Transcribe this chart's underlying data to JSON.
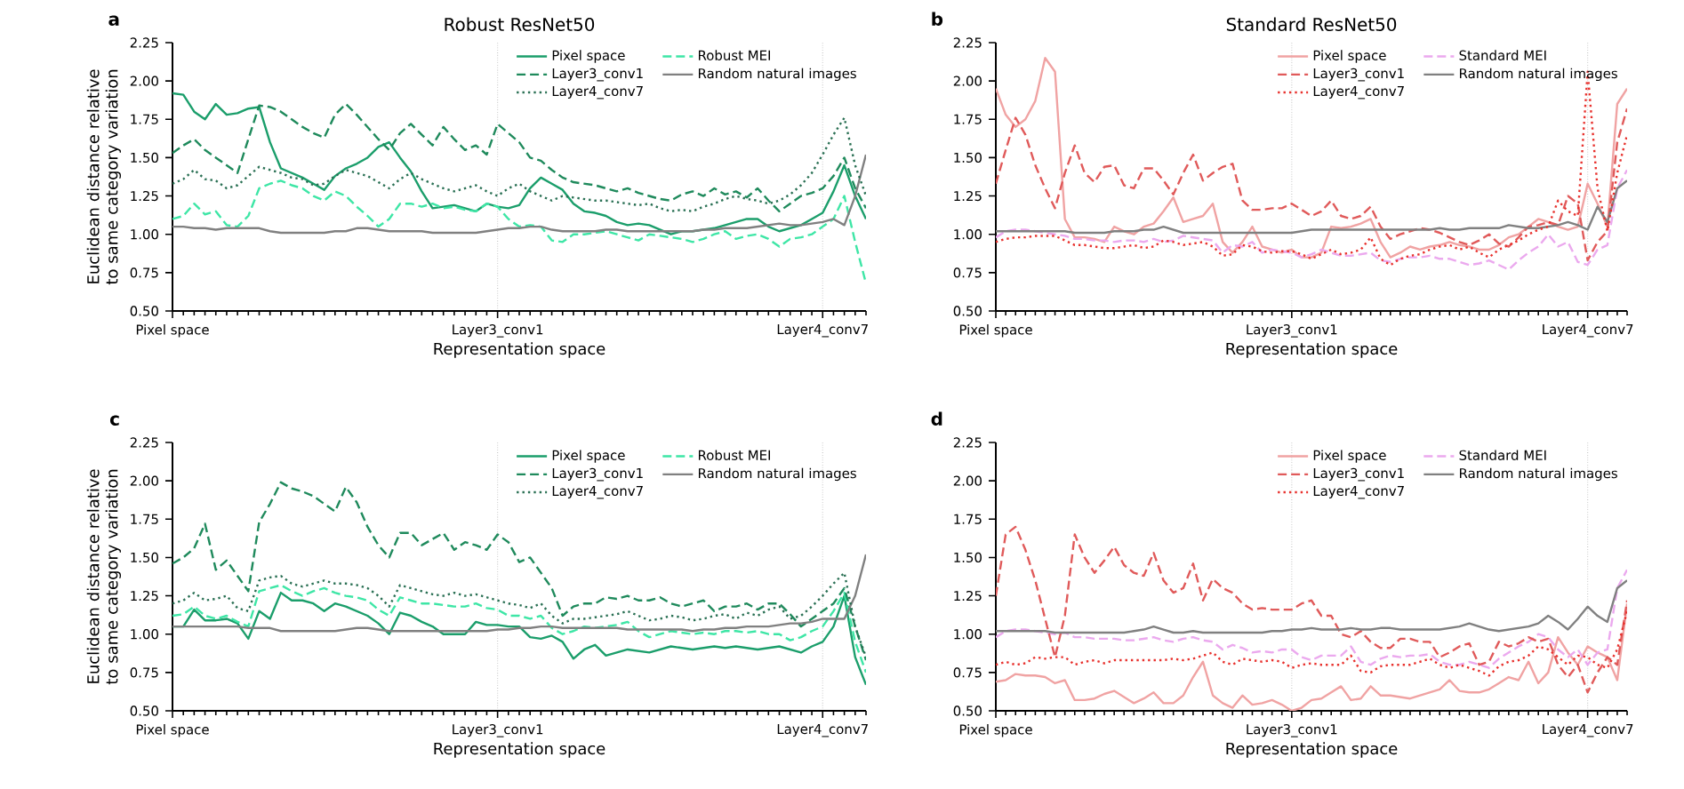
{
  "chart_data": [
    {
      "type": "line",
      "title": "Robust ResNet50",
      "xlabel": "Representation space",
      "ylabel": "Euclidean distance relative to same category variation",
      "annotations": [
        "a"
      ],
      "categories": [
        "Pixel space",
        null,
        null,
        null,
        null,
        null,
        null,
        null,
        null,
        null,
        null,
        null,
        null,
        null,
        null,
        null,
        null,
        null,
        null,
        null,
        null,
        null,
        null,
        null,
        null,
        null,
        null,
        null,
        null,
        null,
        "Layer3_conv1",
        null,
        null,
        null,
        null,
        null,
        null,
        null,
        null,
        null,
        null,
        null,
        null,
        null,
        null,
        null,
        null,
        null,
        null,
        null,
        null,
        null,
        null,
        null,
        null,
        null,
        null,
        null,
        null,
        null,
        "Layer4_conv7",
        null,
        null,
        null,
        null
      ],
      "ylim": [
        0.5,
        2.25
      ],
      "yticks": [
        {
          "value": 0.5,
          "label": "0.50"
        },
        {
          "value": 0.75,
          "label": "0.75"
        },
        {
          "value": 1.0,
          "label": "1.00"
        },
        {
          "value": 1.25,
          "label": "1.25"
        },
        {
          "value": 1.5,
          "label": "1.50"
        },
        {
          "value": 1.75,
          "label": "1.75"
        },
        {
          "value": 2.0,
          "label": "2.00"
        },
        {
          "value": 2.25,
          "label": "2.25"
        }
      ],
      "grid": "x",
      "legend": "top right",
      "series": [
        {
          "name": "Pixel space",
          "color": "#1b9e6b",
          "line_style": "solid",
          "values": [
            1.92,
            1.91,
            1.8,
            1.75,
            1.85,
            1.78,
            1.79,
            1.82,
            1.83,
            1.6,
            1.43,
            1.4,
            1.37,
            1.33,
            1.29,
            1.38,
            1.43,
            1.46,
            1.5,
            1.57,
            1.6,
            1.5,
            1.41,
            1.28,
            1.17,
            1.18,
            1.19,
            1.17,
            1.15,
            1.2,
            1.18,
            1.17,
            1.19,
            1.3,
            1.37,
            1.33,
            1.29,
            1.2,
            1.15,
            1.14,
            1.12,
            1.08,
            1.06,
            1.07,
            1.06,
            1.03,
            1.0,
            1.02,
            1.02,
            1.03,
            1.04,
            1.06,
            1.08,
            1.1,
            1.1,
            1.05,
            1.02,
            1.04,
            1.06,
            1.1,
            1.14,
            1.28,
            1.45,
            1.25,
            1.1
          ]
        },
        {
          "name": "Layer3_conv1",
          "color": "#1f8a5c",
          "line_style": "dashed",
          "values": [
            1.53,
            1.58,
            1.62,
            1.55,
            1.5,
            1.45,
            1.4,
            1.62,
            1.84,
            1.83,
            1.8,
            1.75,
            1.7,
            1.66,
            1.63,
            1.78,
            1.85,
            1.78,
            1.7,
            1.62,
            1.55,
            1.66,
            1.72,
            1.65,
            1.58,
            1.7,
            1.62,
            1.55,
            1.58,
            1.52,
            1.72,
            1.66,
            1.6,
            1.5,
            1.48,
            1.42,
            1.37,
            1.34,
            1.33,
            1.32,
            1.3,
            1.28,
            1.3,
            1.27,
            1.25,
            1.23,
            1.22,
            1.26,
            1.28,
            1.25,
            1.3,
            1.26,
            1.28,
            1.24,
            1.3,
            1.22,
            1.15,
            1.2,
            1.25,
            1.27,
            1.3,
            1.38,
            1.5,
            1.3,
            1.17
          ]
        },
        {
          "name": "Layer4_conv7",
          "color": "#2a7054",
          "line_style": "dotted",
          "values": [
            1.33,
            1.36,
            1.42,
            1.36,
            1.35,
            1.3,
            1.32,
            1.38,
            1.44,
            1.42,
            1.4,
            1.37,
            1.36,
            1.32,
            1.33,
            1.38,
            1.42,
            1.4,
            1.38,
            1.34,
            1.3,
            1.36,
            1.4,
            1.36,
            1.33,
            1.3,
            1.28,
            1.3,
            1.32,
            1.28,
            1.25,
            1.3,
            1.33,
            1.28,
            1.25,
            1.22,
            1.25,
            1.24,
            1.23,
            1.22,
            1.22,
            1.21,
            1.2,
            1.19,
            1.2,
            1.17,
            1.15,
            1.16,
            1.15,
            1.18,
            1.2,
            1.23,
            1.25,
            1.23,
            1.22,
            1.2,
            1.22,
            1.26,
            1.32,
            1.4,
            1.52,
            1.65,
            1.76,
            1.45,
            1.25
          ]
        },
        {
          "name": "Robust MEI",
          "color": "#3ee6a6",
          "line_style": "dashed",
          "values": [
            1.1,
            1.12,
            1.2,
            1.13,
            1.15,
            1.06,
            1.05,
            1.12,
            1.3,
            1.33,
            1.35,
            1.32,
            1.3,
            1.25,
            1.22,
            1.28,
            1.25,
            1.18,
            1.12,
            1.05,
            1.1,
            1.2,
            1.2,
            1.18,
            1.2,
            1.17,
            1.18,
            1.16,
            1.15,
            1.2,
            1.18,
            1.1,
            1.05,
            1.06,
            1.05,
            0.96,
            0.95,
            1.0,
            1.0,
            1.01,
            1.02,
            1.0,
            0.98,
            0.96,
            1.0,
            0.99,
            0.98,
            0.97,
            0.95,
            0.97,
            1.0,
            1.02,
            0.97,
            0.99,
            1.0,
            0.97,
            0.92,
            0.97,
            0.98,
            1.0,
            1.05,
            1.1,
            1.25,
            0.95,
            0.68
          ]
        },
        {
          "name": "Random natural images",
          "color": "#808080",
          "line_style": "solid",
          "values": [
            1.05,
            1.05,
            1.04,
            1.04,
            1.03,
            1.04,
            1.04,
            1.04,
            1.04,
            1.02,
            1.01,
            1.01,
            1.01,
            1.01,
            1.01,
            1.02,
            1.02,
            1.04,
            1.04,
            1.03,
            1.02,
            1.02,
            1.02,
            1.02,
            1.01,
            1.01,
            1.01,
            1.01,
            1.01,
            1.02,
            1.03,
            1.04,
            1.04,
            1.05,
            1.05,
            1.03,
            1.02,
            1.02,
            1.02,
            1.02,
            1.03,
            1.03,
            1.02,
            1.02,
            1.02,
            1.02,
            1.02,
            1.02,
            1.02,
            1.03,
            1.03,
            1.04,
            1.04,
            1.04,
            1.05,
            1.06,
            1.07,
            1.06,
            1.06,
            1.07,
            1.08,
            1.1,
            1.06,
            1.25,
            1.52
          ]
        }
      ]
    },
    {
      "type": "line",
      "title": "Standard ResNet50",
      "xlabel": "Representation space",
      "annotations": [
        "b"
      ],
      "categories": [
        "Pixel space",
        null,
        null,
        null,
        null,
        null,
        null,
        null,
        null,
        null,
        null,
        null,
        null,
        null,
        null,
        null,
        null,
        null,
        null,
        null,
        null,
        null,
        null,
        null,
        null,
        null,
        null,
        null,
        null,
        null,
        "Layer3_conv1",
        null,
        null,
        null,
        null,
        null,
        null,
        null,
        null,
        null,
        null,
        null,
        null,
        null,
        null,
        null,
        null,
        null,
        null,
        null,
        null,
        null,
        null,
        null,
        null,
        null,
        null,
        null,
        null,
        null,
        "Layer4_conv7",
        null,
        null,
        null,
        null
      ],
      "ylim": [
        0.5,
        2.25
      ],
      "yticks": [
        {
          "value": 0.5,
          "label": "0.50"
        },
        {
          "value": 0.75,
          "label": "0.75"
        },
        {
          "value": 1.0,
          "label": "1.00"
        },
        {
          "value": 1.25,
          "label": "1.25"
        },
        {
          "value": 1.5,
          "label": "1.50"
        },
        {
          "value": 1.75,
          "label": "1.75"
        },
        {
          "value": 2.0,
          "label": "2.00"
        },
        {
          "value": 2.25,
          "label": "2.25"
        }
      ],
      "grid": "x",
      "legend": "top right",
      "series": [
        {
          "name": "Pixel space",
          "color": "#f0a3a3",
          "line_style": "solid",
          "values": [
            1.95,
            1.78,
            1.7,
            1.75,
            1.87,
            2.15,
            2.06,
            1.1,
            0.98,
            0.98,
            0.97,
            0.95,
            1.05,
            1.02,
            1.0,
            1.05,
            1.07,
            1.15,
            1.24,
            1.08,
            1.1,
            1.12,
            1.2,
            0.95,
            0.88,
            0.95,
            1.05,
            0.92,
            0.9,
            0.88,
            0.9,
            0.85,
            0.85,
            0.88,
            1.05,
            1.04,
            1.05,
            1.07,
            1.1,
            0.95,
            0.85,
            0.88,
            0.92,
            0.9,
            0.92,
            0.93,
            0.95,
            0.93,
            0.92,
            0.9,
            0.9,
            0.93,
            0.98,
            1.0,
            1.05,
            1.1,
            1.08,
            1.05,
            1.03,
            1.05,
            1.33,
            1.2,
            1.05,
            1.85,
            1.95
          ]
        },
        {
          "name": "Layer3_conv1",
          "color": "#e05a5a",
          "line_style": "dashed",
          "values": [
            1.33,
            1.55,
            1.76,
            1.65,
            1.45,
            1.3,
            1.17,
            1.4,
            1.58,
            1.4,
            1.34,
            1.44,
            1.45,
            1.32,
            1.3,
            1.43,
            1.43,
            1.35,
            1.26,
            1.4,
            1.52,
            1.35,
            1.4,
            1.44,
            1.46,
            1.22,
            1.16,
            1.16,
            1.17,
            1.17,
            1.2,
            1.16,
            1.12,
            1.15,
            1.22,
            1.12,
            1.1,
            1.12,
            1.18,
            1.05,
            0.97,
            1.0,
            1.02,
            1.04,
            1.03,
            1.01,
            0.98,
            0.95,
            0.93,
            0.96,
            1.0,
            0.94,
            0.92,
            0.98,
            1.05,
            1.06,
            1.08,
            1.06,
            1.25,
            1.2,
            0.83,
            0.95,
            1.02,
            1.6,
            1.82
          ]
        },
        {
          "name": "Layer4_conv7",
          "color": "#e8322e",
          "line_style": "dotted",
          "values": [
            0.95,
            0.97,
            0.98,
            0.98,
            0.99,
            0.99,
            0.99,
            0.96,
            0.93,
            0.93,
            0.92,
            0.91,
            0.91,
            0.92,
            0.93,
            0.91,
            0.92,
            0.96,
            0.95,
            0.93,
            0.94,
            0.95,
            0.92,
            0.86,
            0.87,
            0.93,
            0.92,
            0.89,
            0.88,
            0.89,
            0.89,
            0.87,
            0.84,
            0.87,
            0.9,
            0.87,
            0.88,
            0.9,
            0.98,
            0.84,
            0.8,
            0.84,
            0.86,
            0.87,
            0.9,
            0.92,
            0.93,
            0.9,
            0.92,
            0.88,
            0.85,
            0.9,
            0.93,
            0.96,
            1.0,
            1.03,
            1.05,
            1.22,
            1.15,
            1.12,
            2.06,
            1.3,
            1.02,
            1.4,
            1.65
          ]
        },
        {
          "name": "Standard MEI",
          "color": "#eba9ee",
          "line_style": "dashed",
          "values": [
            0.98,
            1.02,
            1.03,
            1.03,
            1.02,
            1.01,
            1.0,
            0.99,
            0.97,
            0.97,
            0.96,
            0.96,
            0.95,
            0.96,
            0.96,
            0.95,
            0.97,
            0.95,
            0.96,
            0.99,
            0.98,
            0.97,
            0.96,
            0.88,
            0.93,
            0.92,
            0.95,
            0.88,
            0.9,
            0.89,
            0.88,
            0.85,
            0.87,
            0.9,
            0.88,
            0.86,
            0.86,
            0.87,
            0.88,
            0.83,
            0.82,
            0.84,
            0.85,
            0.85,
            0.86,
            0.84,
            0.84,
            0.82,
            0.8,
            0.81,
            0.83,
            0.8,
            0.77,
            0.83,
            0.88,
            0.92,
            1.0,
            0.92,
            0.95,
            0.82,
            0.8,
            0.9,
            0.93,
            1.3,
            1.42
          ]
        },
        {
          "name": "Random natural images",
          "color": "#808080",
          "line_style": "solid",
          "values": [
            1.02,
            1.02,
            1.02,
            1.02,
            1.02,
            1.02,
            1.02,
            1.02,
            1.01,
            1.01,
            1.01,
            1.01,
            1.02,
            1.02,
            1.02,
            1.03,
            1.03,
            1.05,
            1.03,
            1.01,
            1.01,
            1.01,
            1.01,
            1.01,
            1.01,
            1.01,
            1.01,
            1.01,
            1.01,
            1.01,
            1.01,
            1.02,
            1.03,
            1.03,
            1.03,
            1.03,
            1.03,
            1.03,
            1.03,
            1.03,
            1.03,
            1.03,
            1.03,
            1.03,
            1.03,
            1.04,
            1.03,
            1.03,
            1.04,
            1.04,
            1.04,
            1.04,
            1.06,
            1.05,
            1.04,
            1.04,
            1.05,
            1.06,
            1.08,
            1.06,
            1.03,
            1.18,
            1.08,
            1.3,
            1.35
          ]
        }
      ]
    },
    {
      "type": "line",
      "xlabel": "Representation space",
      "ylabel": "Euclidean distance relative to same category variation",
      "annotations": [
        "c"
      ],
      "categories": [
        "Pixel space",
        null,
        null,
        null,
        null,
        null,
        null,
        null,
        null,
        null,
        null,
        null,
        null,
        null,
        null,
        null,
        null,
        null,
        null,
        null,
        null,
        null,
        null,
        null,
        null,
        null,
        null,
        null,
        null,
        null,
        "Layer3_conv1",
        null,
        null,
        null,
        null,
        null,
        null,
        null,
        null,
        null,
        null,
        null,
        null,
        null,
        null,
        null,
        null,
        null,
        null,
        null,
        null,
        null,
        null,
        null,
        null,
        null,
        null,
        null,
        null,
        null,
        "Layer4_conv7",
        null,
        null,
        null,
        null
      ],
      "ylim": [
        0.5,
        2.25
      ],
      "yticks": [
        {
          "value": 0.5,
          "label": "0.50"
        },
        {
          "value": 0.75,
          "label": "0.75"
        },
        {
          "value": 1.0,
          "label": "1.00"
        },
        {
          "value": 1.25,
          "label": "1.25"
        },
        {
          "value": 1.5,
          "label": "1.50"
        },
        {
          "value": 1.75,
          "label": "1.75"
        },
        {
          "value": 2.0,
          "label": "2.00"
        },
        {
          "value": 2.25,
          "label": "2.25"
        }
      ],
      "grid": "x",
      "legend": "top right",
      "series": [
        {
          "name": "Pixel space",
          "color": "#1b9e6b",
          "line_style": "solid",
          "values": [
            1.05,
            1.05,
            1.16,
            1.09,
            1.09,
            1.1,
            1.07,
            0.97,
            1.15,
            1.1,
            1.27,
            1.22,
            1.22,
            1.2,
            1.15,
            1.2,
            1.18,
            1.15,
            1.12,
            1.07,
            1.0,
            1.14,
            1.12,
            1.08,
            1.05,
            1.0,
            1.0,
            1.0,
            1.08,
            1.06,
            1.06,
            1.05,
            1.05,
            0.98,
            0.97,
            0.99,
            0.95,
            0.84,
            0.9,
            0.93,
            0.86,
            0.88,
            0.9,
            0.89,
            0.88,
            0.9,
            0.92,
            0.91,
            0.9,
            0.91,
            0.92,
            0.91,
            0.92,
            0.91,
            0.9,
            0.91,
            0.92,
            0.9,
            0.88,
            0.92,
            0.95,
            1.05,
            1.25,
            0.85,
            0.67
          ]
        },
        {
          "name": "Layer3_conv1",
          "color": "#1f8a5c",
          "line_style": "dashed",
          "values": [
            1.46,
            1.5,
            1.56,
            1.72,
            1.42,
            1.48,
            1.38,
            1.28,
            1.73,
            1.85,
            1.99,
            1.95,
            1.93,
            1.9,
            1.85,
            1.8,
            1.96,
            1.86,
            1.7,
            1.58,
            1.5,
            1.66,
            1.66,
            1.58,
            1.62,
            1.66,
            1.55,
            1.6,
            1.58,
            1.55,
            1.65,
            1.6,
            1.47,
            1.5,
            1.4,
            1.3,
            1.12,
            1.18,
            1.2,
            1.2,
            1.24,
            1.23,
            1.25,
            1.22,
            1.22,
            1.24,
            1.2,
            1.18,
            1.2,
            1.22,
            1.15,
            1.18,
            1.18,
            1.2,
            1.16,
            1.2,
            1.2,
            1.13,
            1.05,
            1.1,
            1.15,
            1.2,
            1.3,
            1.05,
            0.83
          ]
        },
        {
          "name": "Layer4_conv7",
          "color": "#2a7054",
          "line_style": "dotted",
          "values": [
            1.2,
            1.22,
            1.27,
            1.22,
            1.23,
            1.25,
            1.17,
            1.15,
            1.35,
            1.37,
            1.38,
            1.33,
            1.31,
            1.33,
            1.35,
            1.33,
            1.33,
            1.32,
            1.3,
            1.25,
            1.18,
            1.32,
            1.3,
            1.28,
            1.26,
            1.25,
            1.27,
            1.25,
            1.26,
            1.24,
            1.22,
            1.2,
            1.19,
            1.17,
            1.2,
            1.12,
            1.07,
            1.1,
            1.1,
            1.11,
            1.12,
            1.13,
            1.15,
            1.12,
            1.09,
            1.1,
            1.12,
            1.11,
            1.09,
            1.1,
            1.12,
            1.13,
            1.1,
            1.14,
            1.12,
            1.16,
            1.18,
            1.1,
            1.12,
            1.18,
            1.25,
            1.33,
            1.4,
            1.05,
            0.85
          ]
        },
        {
          "name": "Robust MEI",
          "color": "#3ee6a6",
          "line_style": "dashed",
          "values": [
            1.12,
            1.13,
            1.18,
            1.12,
            1.1,
            1.12,
            1.08,
            1.05,
            1.28,
            1.3,
            1.32,
            1.28,
            1.25,
            1.28,
            1.3,
            1.27,
            1.25,
            1.24,
            1.22,
            1.16,
            1.12,
            1.24,
            1.22,
            1.2,
            1.2,
            1.19,
            1.18,
            1.18,
            1.2,
            1.17,
            1.16,
            1.12,
            1.12,
            1.1,
            1.12,
            1.04,
            1.0,
            1.02,
            1.05,
            1.04,
            1.05,
            1.06,
            1.08,
            1.02,
            0.98,
            1.0,
            1.02,
            1.01,
            1.0,
            1.01,
            1.0,
            1.02,
            1.02,
            1.01,
            1.02,
            1.0,
            1.0,
            0.96,
            0.98,
            1.02,
            1.05,
            1.15,
            1.27,
            0.95,
            0.75
          ]
        },
        {
          "name": "Random natural images",
          "color": "#808080",
          "line_style": "solid",
          "values": [
            1.05,
            1.05,
            1.05,
            1.05,
            1.05,
            1.05,
            1.05,
            1.04,
            1.04,
            1.04,
            1.02,
            1.02,
            1.02,
            1.02,
            1.02,
            1.02,
            1.03,
            1.04,
            1.04,
            1.03,
            1.02,
            1.02,
            1.02,
            1.02,
            1.02,
            1.02,
            1.02,
            1.02,
            1.02,
            1.02,
            1.03,
            1.03,
            1.04,
            1.04,
            1.05,
            1.05,
            1.04,
            1.04,
            1.04,
            1.04,
            1.04,
            1.04,
            1.03,
            1.03,
            1.03,
            1.03,
            1.03,
            1.03,
            1.02,
            1.03,
            1.03,
            1.04,
            1.04,
            1.05,
            1.05,
            1.05,
            1.06,
            1.07,
            1.07,
            1.08,
            1.1,
            1.1,
            1.1,
            1.25,
            1.52
          ]
        }
      ]
    },
    {
      "type": "line",
      "xlabel": "Representation space",
      "annotations": [
        "d"
      ],
      "categories": [
        "Pixel space",
        null,
        null,
        null,
        null,
        null,
        null,
        null,
        null,
        null,
        null,
        null,
        null,
        null,
        null,
        null,
        null,
        null,
        null,
        null,
        null,
        null,
        null,
        null,
        null,
        null,
        null,
        null,
        null,
        null,
        "Layer3_conv1",
        null,
        null,
        null,
        null,
        null,
        null,
        null,
        null,
        null,
        null,
        null,
        null,
        null,
        null,
        null,
        null,
        null,
        null,
        null,
        null,
        null,
        null,
        null,
        null,
        null,
        null,
        null,
        null,
        null,
        "Layer4_conv7",
        null,
        null,
        null,
        null
      ],
      "ylim": [
        0.5,
        2.25
      ],
      "yticks": [
        {
          "value": 0.5,
          "label": "0.50"
        },
        {
          "value": 0.75,
          "label": "0.75"
        },
        {
          "value": 1.0,
          "label": "1.00"
        },
        {
          "value": 1.25,
          "label": "1.25"
        },
        {
          "value": 1.5,
          "label": "1.50"
        },
        {
          "value": 1.75,
          "label": "1.75"
        },
        {
          "value": 2.0,
          "label": "2.00"
        },
        {
          "value": 2.25,
          "label": "2.25"
        }
      ],
      "grid": "x",
      "legend": "top right",
      "series": [
        {
          "name": "Pixel space",
          "color": "#f0a3a3",
          "line_style": "solid",
          "values": [
            0.69,
            0.7,
            0.74,
            0.73,
            0.73,
            0.72,
            0.68,
            0.7,
            0.57,
            0.57,
            0.58,
            0.61,
            0.63,
            0.59,
            0.55,
            0.58,
            0.62,
            0.55,
            0.55,
            0.6,
            0.72,
            0.82,
            0.6,
            0.55,
            0.52,
            0.6,
            0.54,
            0.55,
            0.57,
            0.54,
            0.5,
            0.52,
            0.57,
            0.58,
            0.62,
            0.66,
            0.57,
            0.58,
            0.66,
            0.6,
            0.6,
            0.59,
            0.58,
            0.6,
            0.62,
            0.64,
            0.7,
            0.63,
            0.62,
            0.62,
            0.64,
            0.68,
            0.72,
            0.7,
            0.82,
            0.68,
            0.75,
            0.98,
            0.88,
            0.8,
            0.92,
            0.88,
            0.85,
            0.7,
            1.2
          ]
        },
        {
          "name": "Layer3_conv1",
          "color": "#e05a5a",
          "line_style": "dashed",
          "values": [
            1.25,
            1.65,
            1.7,
            1.55,
            1.35,
            1.1,
            0.85,
            1.12,
            1.65,
            1.5,
            1.4,
            1.48,
            1.57,
            1.45,
            1.4,
            1.38,
            1.53,
            1.35,
            1.27,
            1.3,
            1.46,
            1.22,
            1.36,
            1.3,
            1.27,
            1.2,
            1.16,
            1.17,
            1.16,
            1.16,
            1.16,
            1.2,
            1.22,
            1.12,
            1.12,
            1.0,
            0.98,
            1.02,
            0.95,
            0.91,
            0.91,
            0.97,
            0.97,
            0.95,
            0.95,
            0.85,
            0.88,
            0.92,
            0.94,
            0.8,
            0.82,
            0.95,
            0.92,
            0.94,
            0.98,
            0.95,
            0.97,
            0.8,
            0.72,
            0.8,
            0.62,
            0.75,
            0.85,
            0.8,
            1.22
          ]
        },
        {
          "name": "Layer4_conv7",
          "color": "#e8322e",
          "line_style": "dotted",
          "values": [
            0.8,
            0.82,
            0.8,
            0.81,
            0.85,
            0.84,
            0.85,
            0.85,
            0.8,
            0.82,
            0.83,
            0.81,
            0.83,
            0.83,
            0.83,
            0.83,
            0.83,
            0.83,
            0.84,
            0.83,
            0.84,
            0.86,
            0.88,
            0.82,
            0.8,
            0.84,
            0.83,
            0.82,
            0.83,
            0.82,
            0.78,
            0.8,
            0.81,
            0.8,
            0.8,
            0.8,
            0.86,
            0.76,
            0.75,
            0.79,
            0.8,
            0.8,
            0.8,
            0.82,
            0.84,
            0.8,
            0.78,
            0.8,
            0.78,
            0.76,
            0.73,
            0.79,
            0.82,
            0.83,
            0.86,
            0.92,
            0.9,
            0.85,
            0.8,
            0.86,
            0.85,
            0.8,
            0.78,
            0.9,
            1.15
          ]
        },
        {
          "name": "Standard MEI",
          "color": "#eba9ee",
          "line_style": "dashed",
          "values": [
            0.98,
            1.02,
            1.03,
            1.03,
            1.02,
            1.01,
            1.0,
            1.01,
            0.98,
            0.98,
            0.97,
            0.97,
            0.97,
            0.96,
            0.96,
            0.97,
            0.98,
            0.96,
            0.95,
            0.97,
            0.98,
            0.96,
            0.95,
            0.9,
            0.93,
            0.91,
            0.88,
            0.89,
            0.88,
            0.9,
            0.9,
            0.85,
            0.83,
            0.86,
            0.86,
            0.86,
            0.92,
            0.82,
            0.8,
            0.84,
            0.86,
            0.85,
            0.86,
            0.86,
            0.87,
            0.82,
            0.8,
            0.8,
            0.82,
            0.8,
            0.78,
            0.84,
            0.88,
            0.92,
            0.95,
            1.0,
            0.98,
            0.9,
            0.85,
            0.9,
            0.8,
            0.88,
            0.9,
            1.3,
            1.42
          ]
        },
        {
          "name": "Random natural images",
          "color": "#808080",
          "line_style": "solid",
          "values": [
            1.02,
            1.02,
            1.02,
            1.02,
            1.02,
            1.02,
            1.01,
            1.01,
            1.01,
            1.01,
            1.01,
            1.01,
            1.01,
            1.01,
            1.02,
            1.03,
            1.05,
            1.03,
            1.01,
            1.01,
            1.02,
            1.01,
            1.01,
            1.01,
            1.01,
            1.01,
            1.01,
            1.01,
            1.02,
            1.02,
            1.03,
            1.03,
            1.04,
            1.03,
            1.03,
            1.03,
            1.04,
            1.03,
            1.03,
            1.04,
            1.04,
            1.03,
            1.03,
            1.03,
            1.03,
            1.03,
            1.04,
            1.05,
            1.07,
            1.05,
            1.03,
            1.02,
            1.03,
            1.04,
            1.05,
            1.07,
            1.12,
            1.08,
            1.03,
            1.1,
            1.18,
            1.12,
            1.08,
            1.3,
            1.35
          ]
        }
      ]
    }
  ]
}
